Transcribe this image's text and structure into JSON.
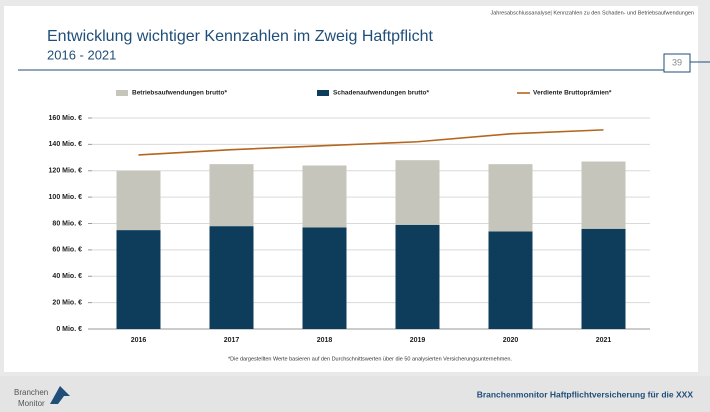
{
  "header": {
    "topnote": "Jahresabschlussanalyse| Kennzahlen zu den Schaden- und Betriebsaufwendungen",
    "title": "Entwicklung wichtiger Kennzahlen im Zweig Haftpflicht",
    "subtitle": "2016 - 2021",
    "page": "39"
  },
  "chart_data": {
    "type": "bar",
    "categories": [
      "2016",
      "2017",
      "2018",
      "2019",
      "2020",
      "2021"
    ],
    "series": [
      {
        "name": "Betriebsaufwendungen brutto*",
        "type": "bar",
        "color": "#c6c5bb",
        "values": [
          45,
          47,
          47,
          49,
          51,
          51
        ]
      },
      {
        "name": "Schadenaufwendungen brutto*",
        "type": "bar",
        "color": "#0d3d5b",
        "values": [
          75,
          78,
          77,
          79,
          74,
          76
        ]
      },
      {
        "name": "Verdiente Bruttoprämien*",
        "type": "line",
        "color": "#b5651d",
        "values": [
          132,
          136,
          139,
          142,
          148,
          151
        ]
      }
    ],
    "stacked": true,
    "ylim": [
      0,
      160
    ],
    "yticks": [
      {
        "value": 0,
        "label": "0 Mio. €"
      },
      {
        "value": 20,
        "label": "20 Mio. €"
      },
      {
        "value": 40,
        "label": "40 Mio. €"
      },
      {
        "value": 60,
        "label": "60 Mio. €"
      },
      {
        "value": 80,
        "label": "80 Mio. €"
      },
      {
        "value": 100,
        "label": "100 Mio. €"
      },
      {
        "value": 120,
        "label": "120 Mio. €"
      },
      {
        "value": 140,
        "label": "140 Mio. €"
      },
      {
        "value": 160,
        "label": "160 Mio. €"
      }
    ],
    "grid": true,
    "legend": "top"
  },
  "footnote": "*Die dargestellten Werte basieren auf den Durchschnittswerten über die 50 analysierten Versicherungsunternehmen.",
  "footer": {
    "logo": [
      "Branchen",
      "Monitor"
    ],
    "text": "Branchenmonitor Haftpflichtversicherung für die XXX"
  }
}
